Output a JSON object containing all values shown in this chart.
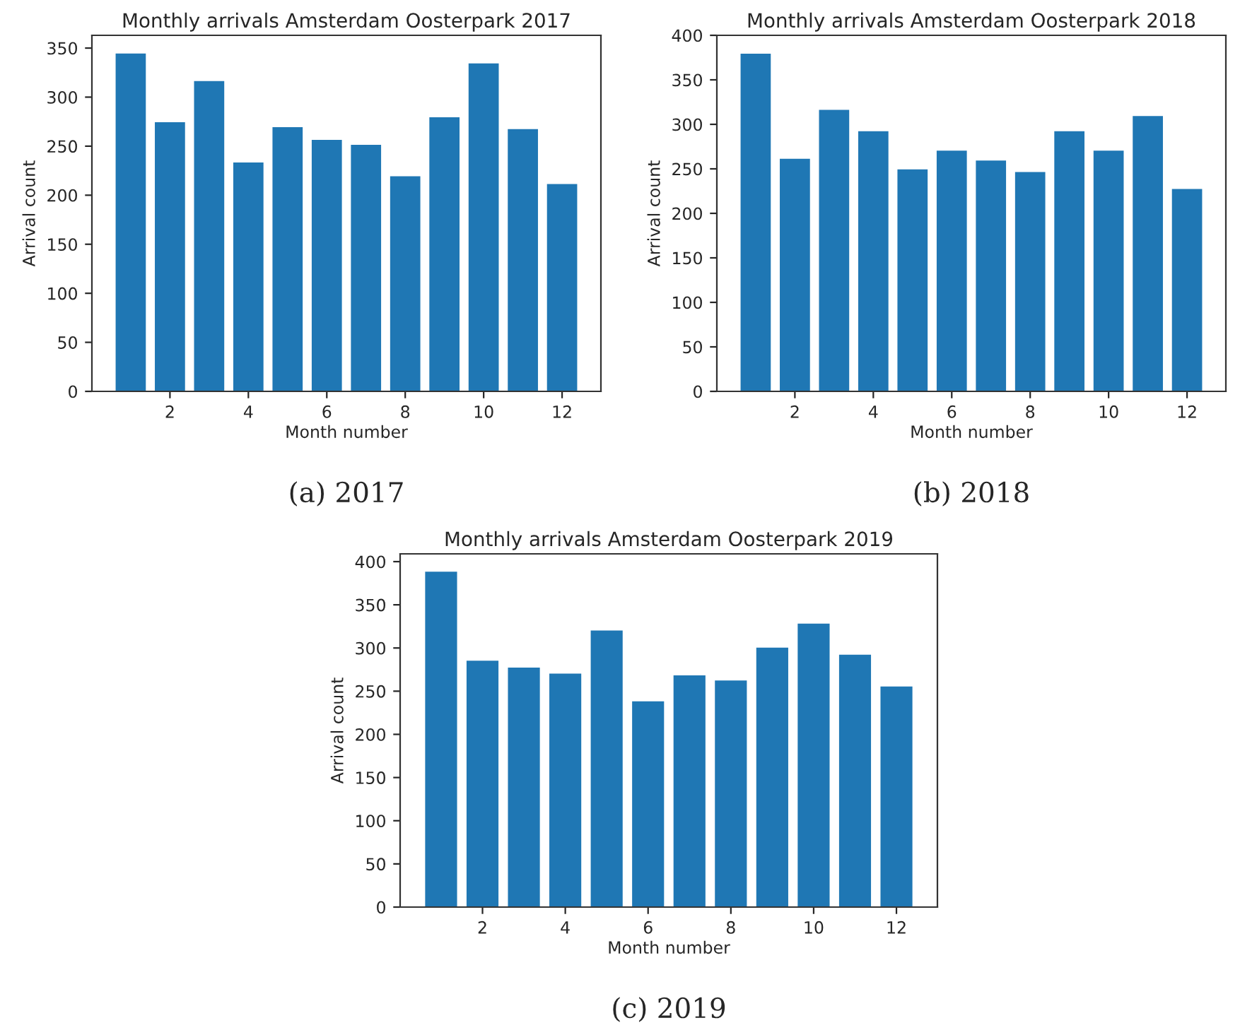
{
  "chart_data": [
    {
      "type": "bar",
      "title": "Monthly arrivals Amsterdam Oosterpark 2017",
      "xlabel": "Month number",
      "ylabel": "Arrival count",
      "x": [
        1,
        2,
        3,
        4,
        5,
        6,
        7,
        8,
        9,
        10,
        11,
        12
      ],
      "values": [
        345,
        275,
        317,
        234,
        270,
        257,
        252,
        220,
        280,
        335,
        268,
        212
      ],
      "color": "#1f77b4",
      "xlim": [
        0.01,
        12.99
      ],
      "xticks": [
        2,
        4,
        6,
        8,
        10,
        12
      ],
      "ylim": [
        0,
        363
      ],
      "yticks": [
        0,
        50,
        100,
        150,
        200,
        250,
        300,
        350
      ],
      "annotations": [
        "(a) 2017"
      ]
    },
    {
      "type": "bar",
      "title": "Monthly arrivals Amsterdam Oosterpark 2018",
      "xlabel": "Month number",
      "ylabel": "Arrival count",
      "x": [
        1,
        2,
        3,
        4,
        5,
        6,
        7,
        8,
        9,
        10,
        11,
        12
      ],
      "values": [
        380,
        262,
        317,
        293,
        250,
        271,
        260,
        247,
        293,
        271,
        310,
        228
      ],
      "color": "#1f77b4",
      "xlim": [
        0.01,
        12.99
      ],
      "xticks": [
        2,
        4,
        6,
        8,
        10,
        12
      ],
      "ylim": [
        0,
        400
      ],
      "yticks": [
        0,
        50,
        100,
        150,
        200,
        250,
        300,
        350,
        400
      ],
      "annotations": [
        "(b) 2018"
      ]
    },
    {
      "type": "bar",
      "title": "Monthly arrivals Amsterdam Oosterpark 2019",
      "xlabel": "Month number",
      "ylabel": "Arrival count",
      "x": [
        1,
        2,
        3,
        4,
        5,
        6,
        7,
        8,
        9,
        10,
        11,
        12
      ],
      "values": [
        389,
        286,
        278,
        271,
        321,
        239,
        269,
        263,
        301,
        329,
        293,
        256
      ],
      "color": "#1f77b4",
      "xlim": [
        0.01,
        12.99
      ],
      "xticks": [
        2,
        4,
        6,
        8,
        10,
        12
      ],
      "ylim": [
        0,
        409
      ],
      "yticks": [
        0,
        50,
        100,
        150,
        200,
        250,
        300,
        350,
        400
      ],
      "annotations": [
        "(c) 2019"
      ]
    }
  ]
}
